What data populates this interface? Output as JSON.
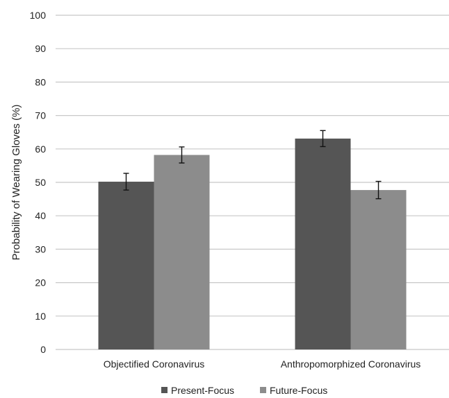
{
  "chart_data": {
    "type": "bar",
    "title": "",
    "xlabel": "",
    "ylabel": "Probability of Wearing Gloves (%)",
    "ylim": [
      0,
      100
    ],
    "yticks": [
      0,
      10,
      20,
      30,
      40,
      50,
      60,
      70,
      80,
      90,
      100
    ],
    "grid": true,
    "legend_position": "bottom",
    "categories": [
      "Objectified Coronavirus",
      "Anthropomorphized Coronavirus"
    ],
    "series": [
      {
        "name": "Present-Focus",
        "values": [
          50.2,
          63.1
        ],
        "errors": [
          2.5,
          2.4
        ],
        "color": "#555555"
      },
      {
        "name": "Future-Focus",
        "values": [
          58.2,
          47.7
        ],
        "errors": [
          2.4,
          2.6
        ],
        "color": "#8c8c8c"
      }
    ],
    "gridline_color": "#c8c8c8",
    "errorbar_color": "#111111"
  }
}
